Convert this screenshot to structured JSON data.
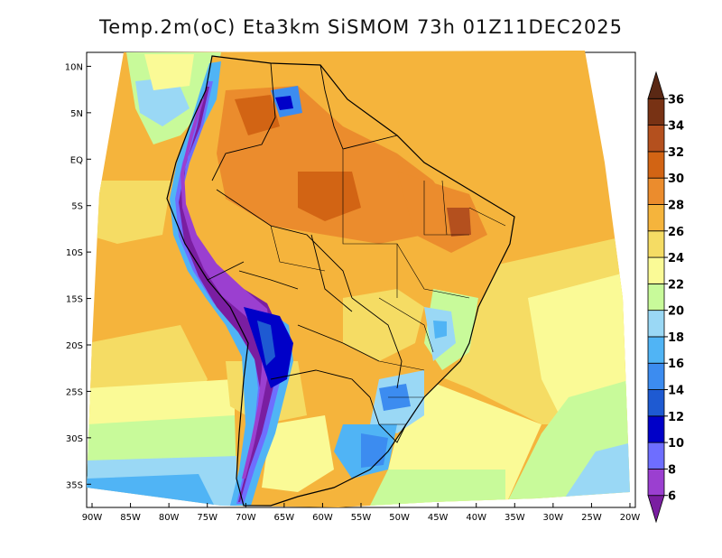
{
  "title": "Temp.2m(oC) Eta3km SiSMOM 73h 01Z11DEC2025",
  "map": {
    "variable": "2m temperature",
    "units": "oC",
    "lon_range": [
      -90,
      -20
    ],
    "lat_range": [
      -37.5,
      11.5
    ],
    "lon_ticks": [
      {
        "lon": -90,
        "label": "90W"
      },
      {
        "lon": -85,
        "label": "85W"
      },
      {
        "lon": -80,
        "label": "80W"
      },
      {
        "lon": -75,
        "label": "75W"
      },
      {
        "lon": -70,
        "label": "70W"
      },
      {
        "lon": -65,
        "label": "65W"
      },
      {
        "lon": -60,
        "label": "60W"
      },
      {
        "lon": -55,
        "label": "55W"
      },
      {
        "lon": -50,
        "label": "50W"
      },
      {
        "lon": -45,
        "label": "45W"
      },
      {
        "lon": -40,
        "label": "40W"
      },
      {
        "lon": -35,
        "label": "35W"
      },
      {
        "lon": -30,
        "label": "30W"
      },
      {
        "lon": -25,
        "label": "25W"
      },
      {
        "lon": -20,
        "label": "20W"
      }
    ],
    "lat_ticks": [
      {
        "lat": 10,
        "label": "10N"
      },
      {
        "lat": 5,
        "label": "5N"
      },
      {
        "lat": 0,
        "label": "EQ"
      },
      {
        "lat": -5,
        "label": "5S"
      },
      {
        "lat": -10,
        "label": "10S"
      },
      {
        "lat": -15,
        "label": "15S"
      },
      {
        "lat": -20,
        "label": "20S"
      },
      {
        "lat": -25,
        "label": "25S"
      },
      {
        "lat": -30,
        "label": "30S"
      },
      {
        "lat": -35,
        "label": "35S"
      }
    ]
  },
  "colorbar": {
    "levels": [
      "6",
      "8",
      "10",
      "12",
      "14",
      "16",
      "18",
      "20",
      "22",
      "24",
      "26",
      "28",
      "30",
      "32",
      "34",
      "36"
    ],
    "colors": [
      "#7a1ea1",
      "#9b3fd0",
      "#6e6eff",
      "#0000c8",
      "#1e5ad2",
      "#3c8cf0",
      "#50b4f5",
      "#9ad8f5",
      "#c8fa9a",
      "#fafa96",
      "#f5dc64",
      "#f5b43c",
      "#eb8c2d",
      "#d26414",
      "#b4501e",
      "#783214",
      "#5a2814"
    ]
  },
  "colors": {
    "ocean_tropical": "#f5b43c",
    "ocean_subtropical": "#f5dc64",
    "ocean_cool": "#fafa96",
    "ocean_cold": "#c8fa9a",
    "land_hot": "#eb8c2d",
    "andes_cold": "#7a1ea1"
  }
}
